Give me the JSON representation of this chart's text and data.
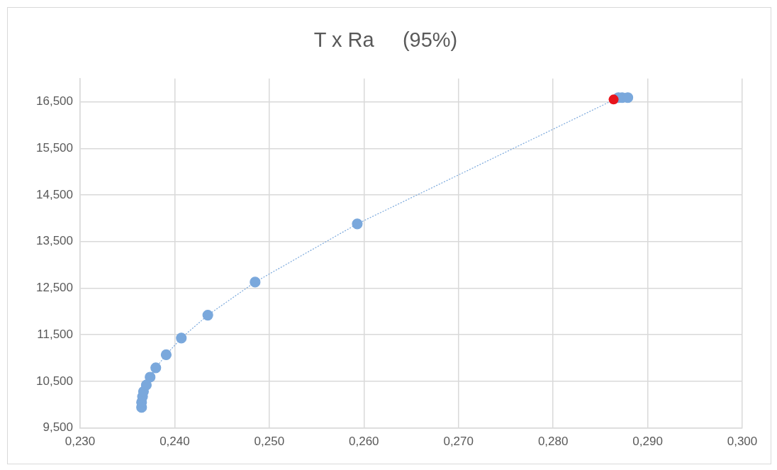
{
  "chart_data": {
    "type": "scatter",
    "title": "T x Ra     (95%)",
    "xlim": [
      0.23,
      0.3
    ],
    "xticks": [
      {
        "value": 0.23,
        "label": "0,230"
      },
      {
        "value": 0.24,
        "label": "0,240"
      },
      {
        "value": 0.25,
        "label": "0,250"
      },
      {
        "value": 0.26,
        "label": "0,260"
      },
      {
        "value": 0.27,
        "label": "0,270"
      },
      {
        "value": 0.28,
        "label": "0,280"
      },
      {
        "value": 0.29,
        "label": "0,290"
      },
      {
        "value": 0.3,
        "label": "0,300"
      }
    ],
    "ylim": [
      9.5,
      17
    ],
    "yticks": [
      {
        "value": 9.5,
        "label": "9,500"
      },
      {
        "value": 10.5,
        "label": "10,500"
      },
      {
        "value": 11.5,
        "label": "11,500"
      },
      {
        "value": 12.5,
        "label": "12,500"
      },
      {
        "value": 13.5,
        "label": "13,500"
      },
      {
        "value": 14.5,
        "label": "14,500"
      },
      {
        "value": 15.5,
        "label": "15,500"
      },
      {
        "value": 16.5,
        "label": "16,500"
      }
    ],
    "grid": true,
    "legend": false,
    "marker": "circle",
    "series": [
      {
        "type": "line",
        "line_style": "dotted",
        "color": "#7aa8dc",
        "x": [
          0.2365,
          0.2365,
          0.2366,
          0.2367,
          0.237,
          0.2374,
          0.238,
          0.2391,
          0.2407,
          0.2435,
          0.2485,
          0.2593,
          0.2869,
          0.2873,
          0.2879
        ],
        "values": [
          9.94,
          10.05,
          10.17,
          10.28,
          10.42,
          10.59,
          10.79,
          11.07,
          11.43,
          11.92,
          12.63,
          13.88,
          16.59,
          16.59,
          16.59
        ]
      },
      {
        "type": "scatter",
        "color": "#e8141c",
        "x": [
          0.2864
        ],
        "values": [
          16.55
        ]
      }
    ]
  }
}
